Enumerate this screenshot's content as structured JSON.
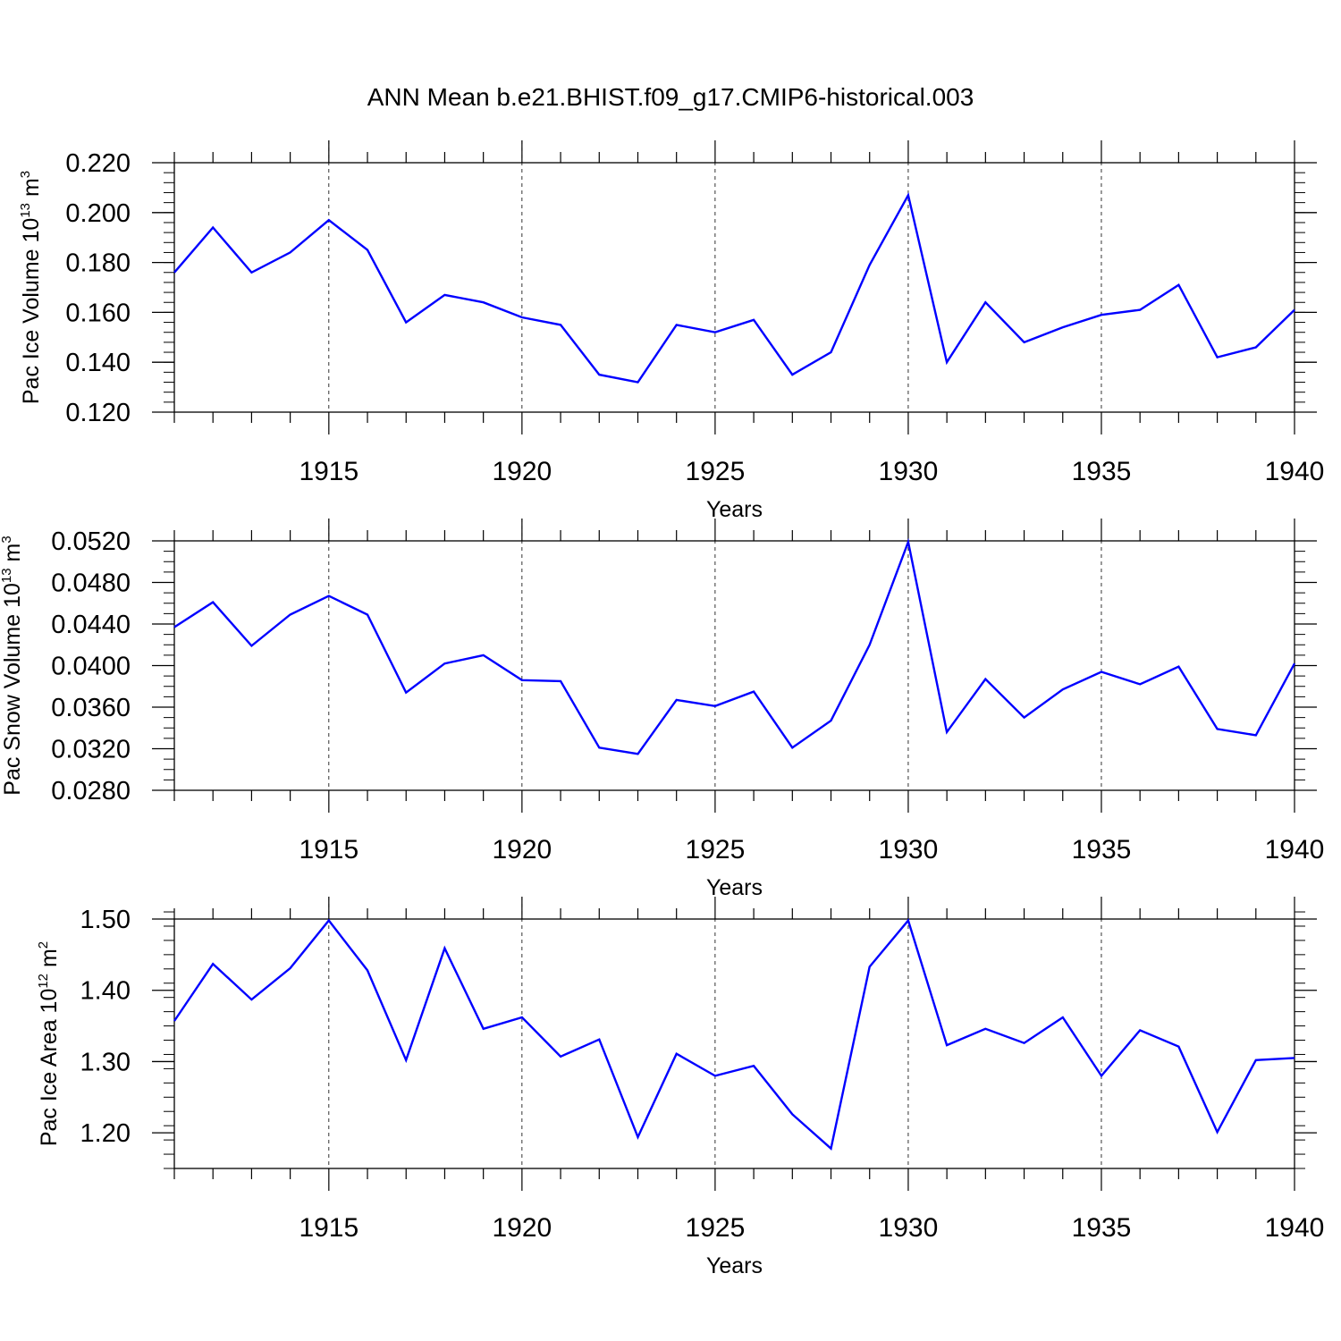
{
  "figure_title": "ANN Mean b.e21.BHIST.f09_g17.CMIP6-historical.003",
  "colors": {
    "series": "#0000ff",
    "axes": "#000000",
    "grid": "#000000",
    "background": "#ffffff"
  },
  "chart_data": [
    {
      "type": "line",
      "title": "ANN Mean b.e21.BHIST.f09_g17.CMIP6-historical.003",
      "xlabel": "Years",
      "ylabel": {
        "text": "Pac Ice Volume 10",
        "sup": "13",
        "unit": " m",
        "unit_sup": "3"
      },
      "xlim": [
        1911,
        1940
      ],
      "ylim": [
        0.12,
        0.22
      ],
      "x_ticks": [
        1915,
        1920,
        1925,
        1930,
        1935,
        1940
      ],
      "x_tick_labels": [
        "1915",
        "1920",
        "1925",
        "1930",
        "1935",
        "1940"
      ],
      "y_ticks": [
        0.12,
        0.14,
        0.16,
        0.18,
        0.2,
        0.22
      ],
      "y_tick_labels": [
        "0.120",
        "0.140",
        "0.160",
        "0.180",
        "0.200",
        "0.220"
      ],
      "y_minor_step": 0.004,
      "grid": "vertical dashed at major x ticks",
      "series": [
        {
          "name": "Pac Ice Volume",
          "x": [
            1911,
            1912,
            1913,
            1914,
            1915,
            1916,
            1917,
            1918,
            1919,
            1920,
            1921,
            1922,
            1923,
            1924,
            1925,
            1926,
            1927,
            1928,
            1929,
            1930,
            1931,
            1932,
            1933,
            1934,
            1935,
            1936,
            1937,
            1938,
            1939,
            1940
          ],
          "values": [
            0.176,
            0.194,
            0.176,
            0.184,
            0.197,
            0.185,
            0.156,
            0.167,
            0.164,
            0.158,
            0.155,
            0.135,
            0.132,
            0.155,
            0.152,
            0.157,
            0.135,
            0.144,
            0.179,
            0.207,
            0.14,
            0.164,
            0.148,
            0.154,
            0.159,
            0.161,
            0.171,
            0.142,
            0.146,
            0.161
          ]
        }
      ]
    },
    {
      "type": "line",
      "xlabel": "Years",
      "ylabel": {
        "text": "Pac Snow Volume 10",
        "sup": "13",
        "unit": " m",
        "unit_sup": "3"
      },
      "xlim": [
        1911,
        1940
      ],
      "ylim": [
        0.028,
        0.052
      ],
      "x_ticks": [
        1915,
        1920,
        1925,
        1930,
        1935,
        1940
      ],
      "x_tick_labels": [
        "1915",
        "1920",
        "1925",
        "1930",
        "1935",
        "1940"
      ],
      "y_ticks": [
        0.028,
        0.032,
        0.036,
        0.04,
        0.044,
        0.048,
        0.052
      ],
      "y_tick_labels": [
        "0.0280",
        "0.0320",
        "0.0360",
        "0.0400",
        "0.0440",
        "0.0480",
        "0.0520"
      ],
      "y_minor_step": 0.001,
      "grid": "vertical dashed at major x ticks",
      "series": [
        {
          "name": "Pac Snow Volume",
          "x": [
            1911,
            1912,
            1913,
            1914,
            1915,
            1916,
            1917,
            1918,
            1919,
            1920,
            1921,
            1922,
            1923,
            1924,
            1925,
            1926,
            1927,
            1928,
            1929,
            1930,
            1931,
            1932,
            1933,
            1934,
            1935,
            1936,
            1937,
            1938,
            1939,
            1940
          ],
          "values": [
            0.0437,
            0.0461,
            0.0419,
            0.0449,
            0.0467,
            0.0449,
            0.0374,
            0.0402,
            0.041,
            0.0386,
            0.0385,
            0.0321,
            0.0315,
            0.0367,
            0.0361,
            0.0375,
            0.0321,
            0.0347,
            0.042,
            0.0519,
            0.0336,
            0.0387,
            0.035,
            0.0377,
            0.0394,
            0.0382,
            0.0399,
            0.0339,
            0.0333,
            0.0402
          ]
        }
      ]
    },
    {
      "type": "line",
      "xlabel": "Years",
      "ylabel": {
        "text": "Pac Ice Area 10",
        "sup": "12",
        "unit": " m",
        "unit_sup": "2"
      },
      "xlim": [
        1911,
        1940
      ],
      "ylim": [
        1.15,
        1.5
      ],
      "x_ticks": [
        1915,
        1920,
        1925,
        1930,
        1935,
        1940
      ],
      "x_tick_labels": [
        "1915",
        "1920",
        "1925",
        "1930",
        "1935",
        "1940"
      ],
      "y_ticks": [
        1.2,
        1.3,
        1.4,
        1.5
      ],
      "y_tick_labels": [
        "1.20",
        "1.30",
        "1.40",
        "1.50"
      ],
      "y_minor_step": 0.02,
      "grid": "vertical dashed at major x ticks",
      "series": [
        {
          "name": "Pac Ice Area",
          "x": [
            1911,
            1912,
            1913,
            1914,
            1915,
            1916,
            1917,
            1918,
            1919,
            1920,
            1921,
            1922,
            1923,
            1924,
            1925,
            1926,
            1927,
            1928,
            1929,
            1930,
            1931,
            1932,
            1933,
            1934,
            1935,
            1936,
            1937,
            1938,
            1939,
            1940
          ],
          "values": [
            1.357,
            1.437,
            1.387,
            1.431,
            1.498,
            1.428,
            1.302,
            1.459,
            1.346,
            1.362,
            1.307,
            1.331,
            1.194,
            1.311,
            1.28,
            1.294,
            1.226,
            1.178,
            1.433,
            1.498,
            1.323,
            1.346,
            1.326,
            1.362,
            1.28,
            1.344,
            1.321,
            1.201,
            1.302,
            1.305
          ]
        }
      ]
    }
  ]
}
